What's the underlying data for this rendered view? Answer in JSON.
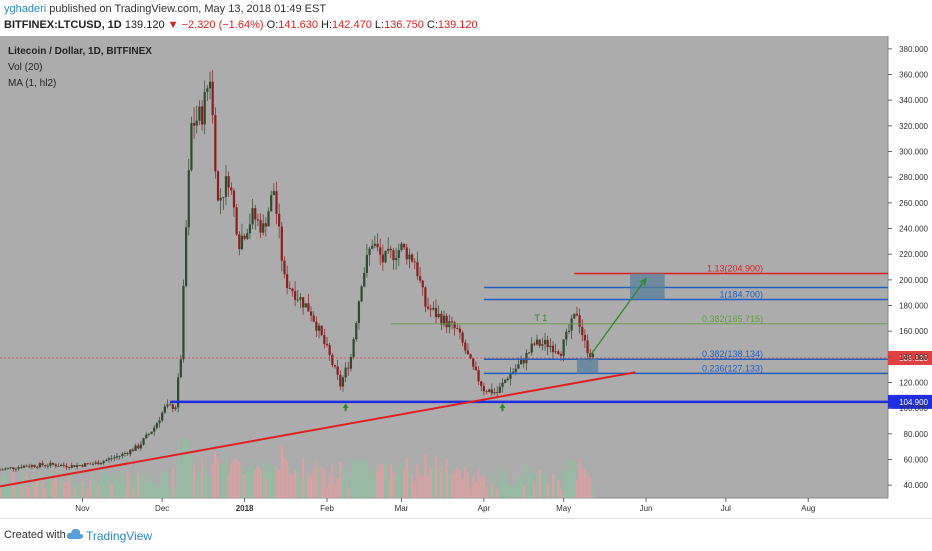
{
  "header": {
    "username": "yghaderi",
    "published_text": " published on TradingView.com, May 13, 2018 01:49 EST",
    "symbol": "BITFINEX:LTCUSD, 1D",
    "last": "139.120",
    "change": "▼ −2.320 (−1.64%)",
    "o_label": "O:",
    "o_val": "141.630",
    "h_label": "H:",
    "h_val": "142.470",
    "l_label": "L:",
    "l_val": "136.750",
    "c_label": "C:",
    "c_val": "139.120"
  },
  "legend": {
    "title": "Litecoin / Dollar, 1D, BITFINEX",
    "vol": "Vol (20)",
    "ma": "MA (1, hl2)"
  },
  "footer": {
    "created": "Created with",
    "brand": "TradingView"
  },
  "colors": {
    "plot_bg": "#acacac",
    "candle_up": "#2f4a2f",
    "candle_down": "#8a1f1f",
    "vol_up": "#8fbfa0",
    "vol_down": "#e0a0a0",
    "trend_red": "#e02020",
    "support_blue": "#1e2ee0",
    "fib_blue": "#2060c0",
    "fib_green": "#60a040",
    "price_label": "#e04040",
    "ma_orange": "#e8a050"
  },
  "chart_data": {
    "type": "candlestick",
    "title": "Litecoin / Dollar, 1D, BITFINEX",
    "ylim": [
      30,
      390
    ],
    "y_ticks": [
      "40.000",
      "60.000",
      "80.000",
      "100.000",
      "120.000",
      "140.000",
      "160.000",
      "180.000",
      "200.000",
      "220.000",
      "240.000",
      "260.000",
      "280.000",
      "300.000",
      "320.000",
      "340.000",
      "360.000",
      "380.000"
    ],
    "y_tick_values": [
      40,
      60,
      80,
      100,
      120,
      140,
      160,
      180,
      200,
      220,
      240,
      260,
      280,
      300,
      320,
      340,
      360,
      380
    ],
    "x_ticks": [
      {
        "label": "Nov",
        "date": "2017-11-01"
      },
      {
        "label": "Dec",
        "date": "2017-12-01"
      },
      {
        "label": "2018",
        "date": "2018-01-01"
      },
      {
        "label": "Feb",
        "date": "2018-02-01"
      },
      {
        "label": "Mar",
        "date": "2018-03-01"
      },
      {
        "label": "Apr",
        "date": "2018-04-01"
      },
      {
        "label": "May",
        "date": "2018-05-01"
      },
      {
        "label": "Jun",
        "date": "2018-06-01"
      },
      {
        "label": "Jul",
        "date": "2018-07-01"
      },
      {
        "label": "Aug",
        "date": "2018-08-01"
      }
    ],
    "x_range": [
      "2017-10-01",
      "2018-08-31"
    ],
    "price_path": [
      {
        "date": "2017-10-01",
        "price": 52
      },
      {
        "date": "2017-10-10",
        "price": 55
      },
      {
        "date": "2017-10-20",
        "price": 56
      },
      {
        "date": "2017-10-28",
        "price": 55
      },
      {
        "date": "2017-11-06",
        "price": 57
      },
      {
        "date": "2017-11-15",
        "price": 63
      },
      {
        "date": "2017-11-22",
        "price": 70
      },
      {
        "date": "2017-11-28",
        "price": 85
      },
      {
        "date": "2017-12-02",
        "price": 100
      },
      {
        "date": "2017-12-06",
        "price": 102
      },
      {
        "date": "2017-12-08",
        "price": 140
      },
      {
        "date": "2017-12-10",
        "price": 240
      },
      {
        "date": "2017-12-12",
        "price": 320
      },
      {
        "date": "2017-12-16",
        "price": 330
      },
      {
        "date": "2017-12-19",
        "price": 360
      },
      {
        "date": "2017-12-22",
        "price": 260
      },
      {
        "date": "2017-12-26",
        "price": 280
      },
      {
        "date": "2017-12-30",
        "price": 230
      },
      {
        "date": "2018-01-04",
        "price": 250
      },
      {
        "date": "2018-01-08",
        "price": 240
      },
      {
        "date": "2018-01-12",
        "price": 270
      },
      {
        "date": "2018-01-16",
        "price": 200
      },
      {
        "date": "2018-01-20",
        "price": 190
      },
      {
        "date": "2018-01-26",
        "price": 175
      },
      {
        "date": "2018-02-02",
        "price": 140
      },
      {
        "date": "2018-02-06",
        "price": 118
      },
      {
        "date": "2018-02-10",
        "price": 140
      },
      {
        "date": "2018-02-14",
        "price": 200
      },
      {
        "date": "2018-02-18",
        "price": 230
      },
      {
        "date": "2018-02-22",
        "price": 215
      },
      {
        "date": "2018-03-01",
        "price": 225
      },
      {
        "date": "2018-03-06",
        "price": 215
      },
      {
        "date": "2018-03-10",
        "price": 180
      },
      {
        "date": "2018-03-16",
        "price": 170
      },
      {
        "date": "2018-03-22",
        "price": 160
      },
      {
        "date": "2018-03-28",
        "price": 130
      },
      {
        "date": "2018-04-01",
        "price": 115
      },
      {
        "date": "2018-04-06",
        "price": 112
      },
      {
        "date": "2018-04-10",
        "price": 125
      },
      {
        "date": "2018-04-15",
        "price": 135
      },
      {
        "date": "2018-04-20",
        "price": 150
      },
      {
        "date": "2018-04-25",
        "price": 150
      },
      {
        "date": "2018-04-30",
        "price": 145
      },
      {
        "date": "2018-05-03",
        "price": 160
      },
      {
        "date": "2018-05-06",
        "price": 175
      },
      {
        "date": "2018-05-09",
        "price": 150
      },
      {
        "date": "2018-05-12",
        "price": 139.12
      }
    ],
    "current_price": 139.12,
    "current_price_label": "139.120",
    "support_level": {
      "price": 104.9,
      "label": "104.900",
      "from": "2017-12-04"
    },
    "trendline": [
      {
        "date": "2017-10-01",
        "price": 39
      },
      {
        "date": "2018-05-28",
        "price": 128
      }
    ],
    "horizontal_levels": [
      {
        "price": 204.9,
        "label": "1.13(204.900)",
        "color": "#e02020",
        "from": "2018-05-05",
        "to": "2018-08-31"
      },
      {
        "price": 194.0,
        "label": "",
        "color": "#2060c0",
        "from": "2018-04-01",
        "to": "2018-08-31"
      },
      {
        "price": 184.7,
        "label": "1(184.700)",
        "color": "#2060c0",
        "from": "2018-04-01",
        "to": "2018-08-31"
      },
      {
        "price": 165.715,
        "label": "0.382(165.715)",
        "color": "#60a040",
        "from": "2018-02-25",
        "to": "2018-08-31"
      },
      {
        "price": 138.134,
        "label": "0.382(138.134)",
        "color": "#2060c0",
        "from": "2018-04-01",
        "to": "2018-08-31"
      },
      {
        "price": 127.133,
        "label": "0.236(127.133)",
        "color": "#2060c0",
        "from": "2018-04-01",
        "to": "2018-08-31"
      }
    ],
    "target_zone": {
      "from": "2018-05-26",
      "to": "2018-06-08",
      "low": 184.7,
      "high": 204.9
    },
    "buy_zone": {
      "from": "2018-05-06",
      "to": "2018-05-14",
      "low": 127.133,
      "high": 138.134
    },
    "projection_arrow": [
      {
        "date": "2018-05-11",
        "price": 141
      },
      {
        "date": "2018-06-01",
        "price": 201
      }
    ],
    "up_markers": [
      {
        "date": "2018-02-08",
        "price": 100
      },
      {
        "date": "2018-04-08",
        "price": 100
      }
    ],
    "annotation_t1": {
      "text": "T 1",
      "date": "2018-04-20",
      "price": 168
    }
  }
}
